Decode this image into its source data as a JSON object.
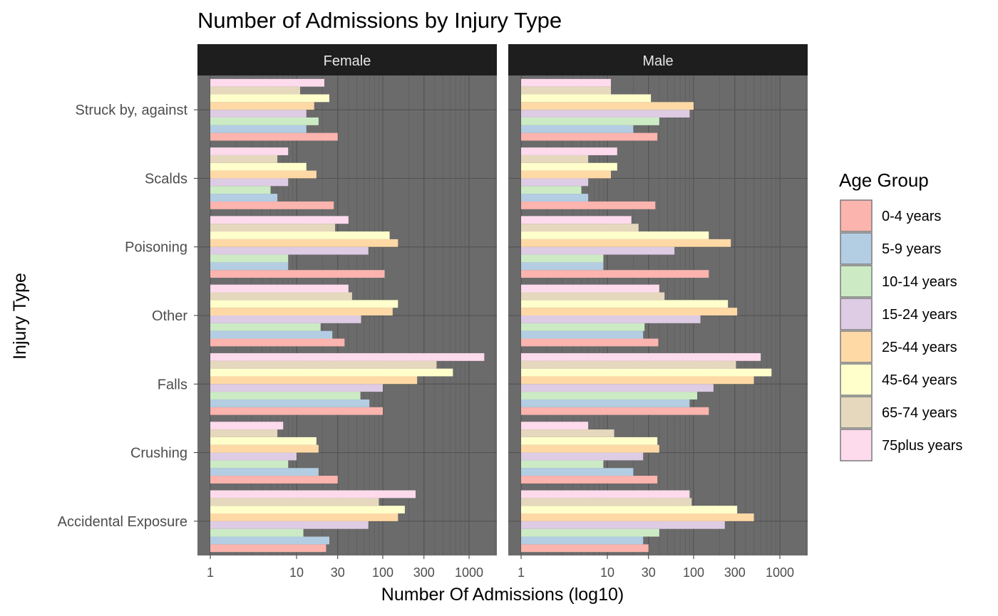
{
  "chart_data": {
    "type": "bar",
    "orientation": "horizontal",
    "title": "Number of Admissions by Injury Type",
    "xlabel": "Number Of Admissions (log10)",
    "ylabel": "Injury Type",
    "x_scale": "log10",
    "xlim": [
      0.85,
      1700
    ],
    "x_ticks": [
      1,
      10,
      30,
      100,
      300,
      1000
    ],
    "x_tick_labels": [
      "1",
      "10",
      "30",
      "100",
      "300",
      "1000"
    ],
    "grid": true,
    "legend_placement": "right",
    "legend_title": "Age Group",
    "categories": [
      "Accidental Exposure",
      "Crushing",
      "Falls",
      "Other",
      "Poisoning",
      "Scalds",
      "Struck by, against"
    ],
    "age_groups": [
      {
        "name": "0-4 years",
        "color": "#fbb4ae"
      },
      {
        "name": "5-9 years",
        "color": "#b3cde3"
      },
      {
        "name": "10-14 years",
        "color": "#ccebc5"
      },
      {
        "name": "15-24 years",
        "color": "#decbe4"
      },
      {
        "name": "25-44 years",
        "color": "#fed9a6"
      },
      {
        "name": "45-64 years",
        "color": "#ffffcc"
      },
      {
        "name": "65-74 years",
        "color": "#e5d8bd"
      },
      {
        "name": "75plus years",
        "color": "#fddaec"
      }
    ],
    "facets": [
      {
        "name": "Female",
        "values": {
          "Accidental Exposure": [
            22,
            24,
            12,
            68,
            150,
            180,
            90,
            240
          ],
          "Crushing": [
            30,
            18,
            8,
            10,
            18,
            17,
            6,
            7
          ],
          "Falls": [
            100,
            70,
            55,
            100,
            250,
            650,
            420,
            1500
          ],
          "Other": [
            36,
            26,
            19,
            56,
            130,
            150,
            44,
            40
          ],
          "Poisoning": [
            105,
            8,
            8,
            68,
            150,
            120,
            28,
            40
          ],
          "Scalds": [
            27,
            6,
            5,
            8,
            17,
            13,
            6,
            8
          ],
          "Struck by, against": [
            30,
            13,
            18,
            13,
            16,
            24,
            11,
            21
          ]
        }
      },
      {
        "name": "Male",
        "values": {
          "Accidental Exposure": [
            30,
            26,
            40,
            230,
            500,
            320,
            95,
            90
          ],
          "Crushing": [
            38,
            20,
            9,
            26,
            40,
            38,
            12,
            6
          ],
          "Falls": [
            150,
            90,
            110,
            170,
            500,
            800,
            310,
            600
          ],
          "Other": [
            39,
            26,
            27,
            120,
            320,
            250,
            46,
            40
          ],
          "Poisoning": [
            150,
            9,
            9,
            60,
            270,
            150,
            23,
            19
          ],
          "Scalds": [
            36,
            6,
            5,
            6,
            11,
            13,
            6,
            13
          ],
          "Struck by, against": [
            38,
            20,
            40,
            90,
            100,
            32,
            11,
            11
          ]
        }
      }
    ]
  }
}
